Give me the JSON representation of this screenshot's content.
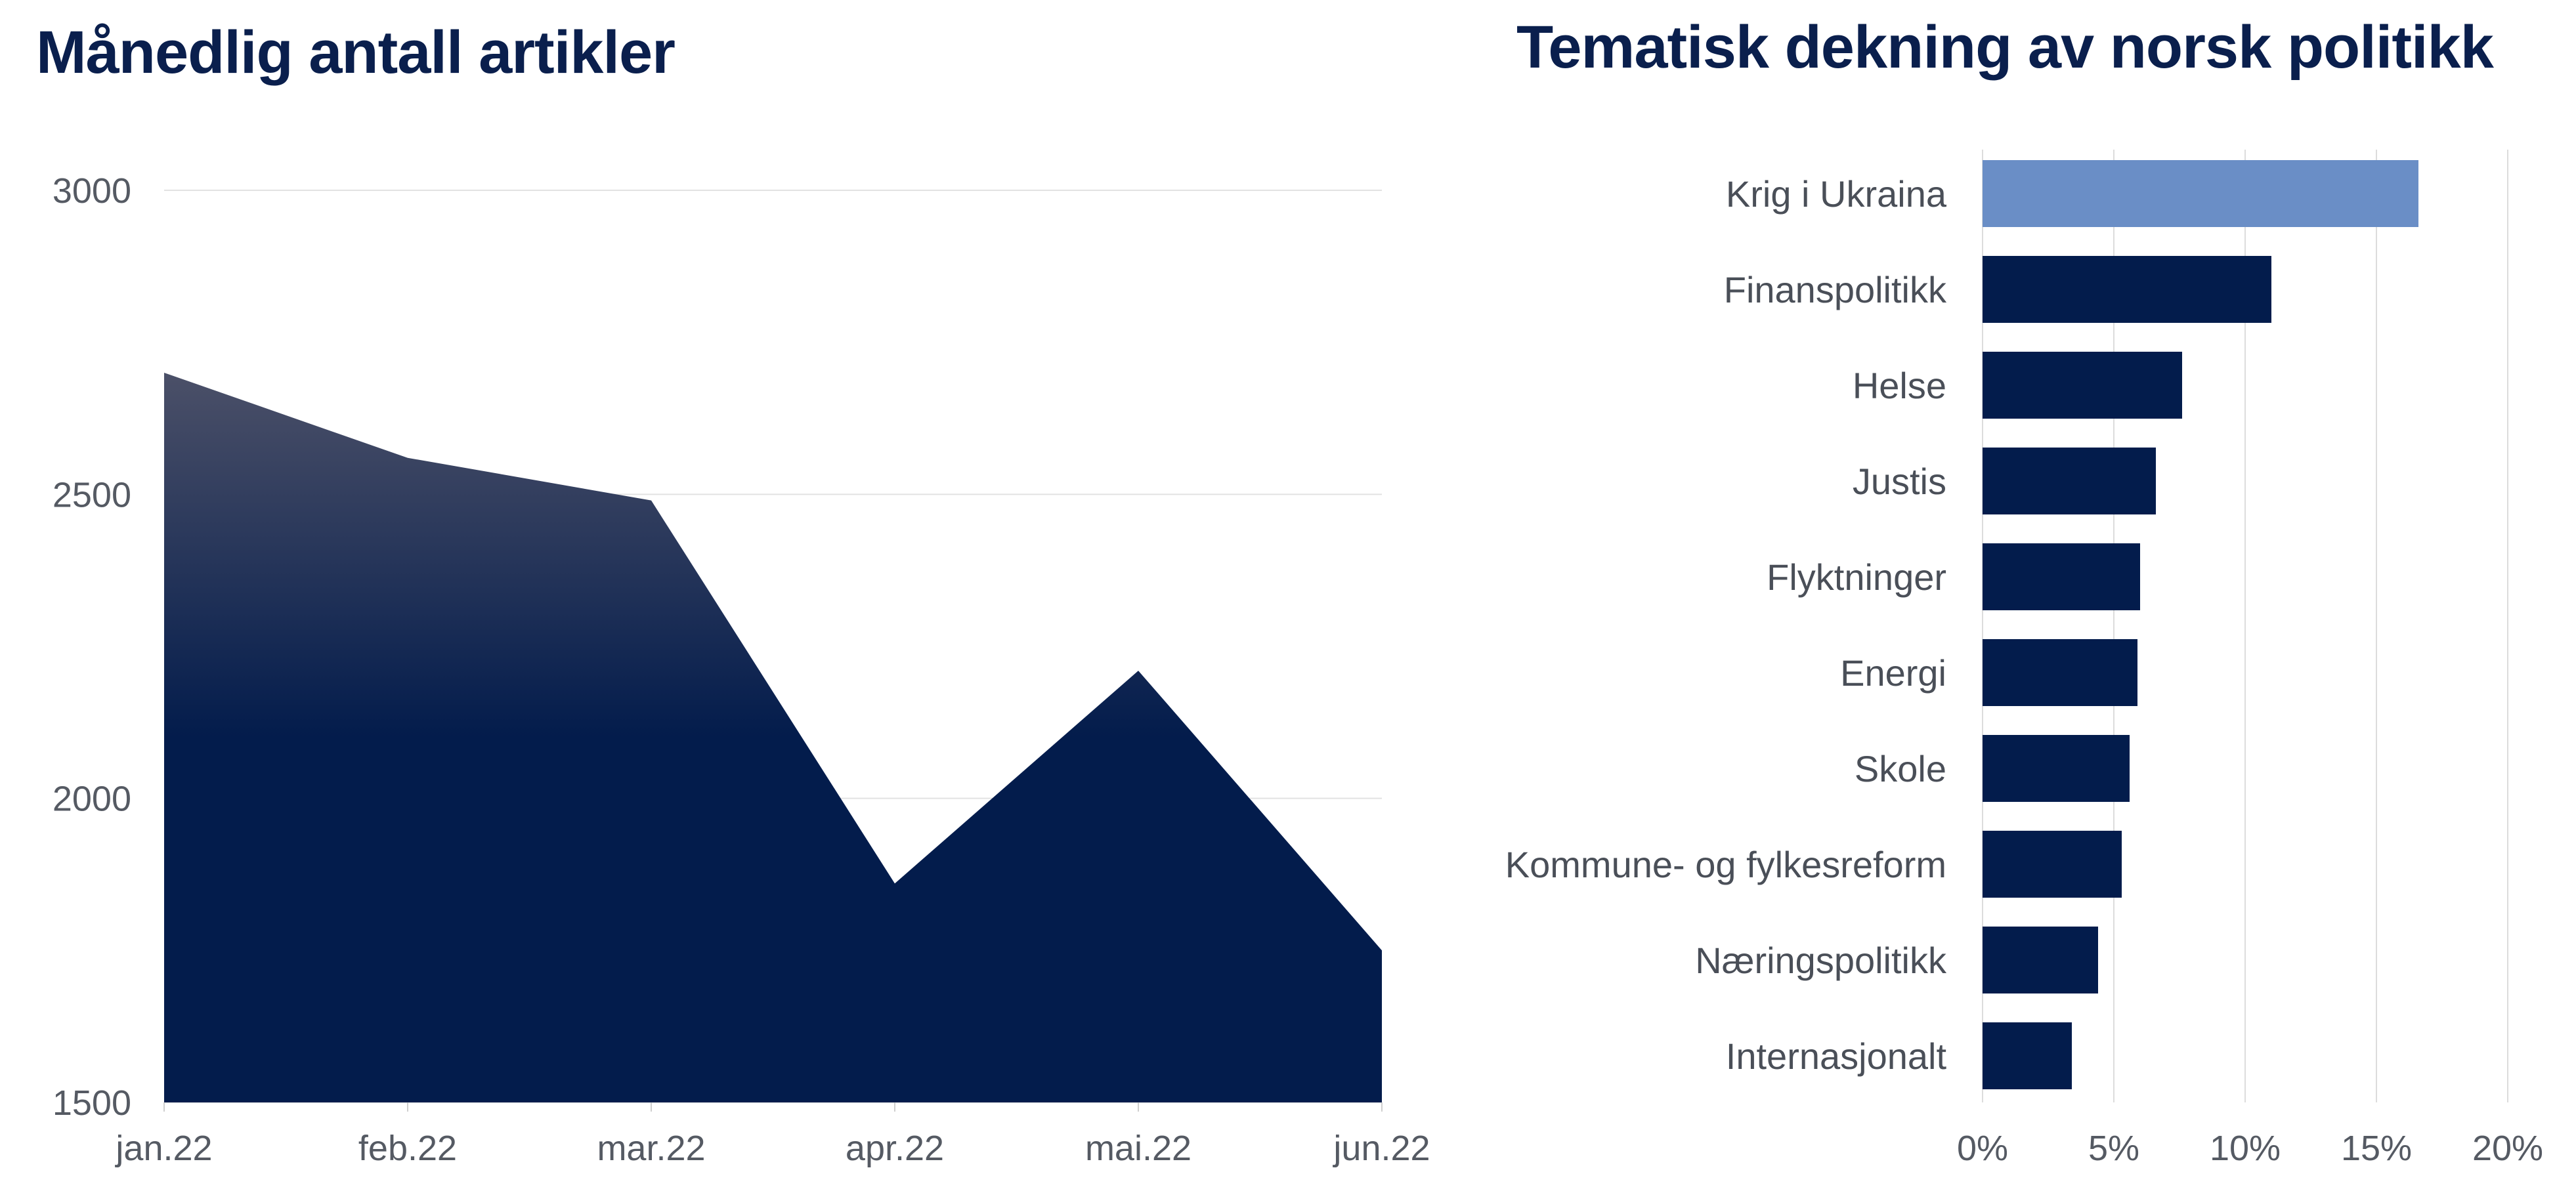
{
  "chart_data": [
    {
      "type": "area",
      "title": "Månedlig antall artikler",
      "x": [
        "jan.22",
        "feb.22",
        "mar.22",
        "apr.22",
        "mai.22",
        "jun.22"
      ],
      "values": [
        2700,
        2560,
        2490,
        1860,
        2210,
        1750
      ],
      "ylim": [
        1500,
        3000
      ],
      "yticks": [
        "1500",
        "2000",
        "2500",
        "3000"
      ],
      "grid": true,
      "colors": {
        "fill_top": "#4b5068",
        "fill_bottom": "#031c4c",
        "grid": "#e2e2e2"
      }
    },
    {
      "type": "bar",
      "orientation": "horizontal",
      "title": "Tematisk dekning av norsk politikk",
      "categories": [
        "Krig i Ukraina",
        "Finanspolitikk",
        "Helse",
        "Justis",
        "Flyktninger",
        "Energi",
        "Skole",
        "Kommune- og fylkesreform",
        "Næringspolitikk",
        "Internasjonalt"
      ],
      "values": [
        16.6,
        11.0,
        7.6,
        6.6,
        6.0,
        5.9,
        5.6,
        5.3,
        4.4,
        3.4
      ],
      "xlim": [
        0,
        20
      ],
      "xticks": [
        "0%",
        "5%",
        "10%",
        "15%",
        "20%"
      ],
      "grid": true,
      "colors": {
        "highlight": "#6a8ec6",
        "bar": "#031c4c",
        "grid": "#dcdcdc"
      }
    }
  ]
}
